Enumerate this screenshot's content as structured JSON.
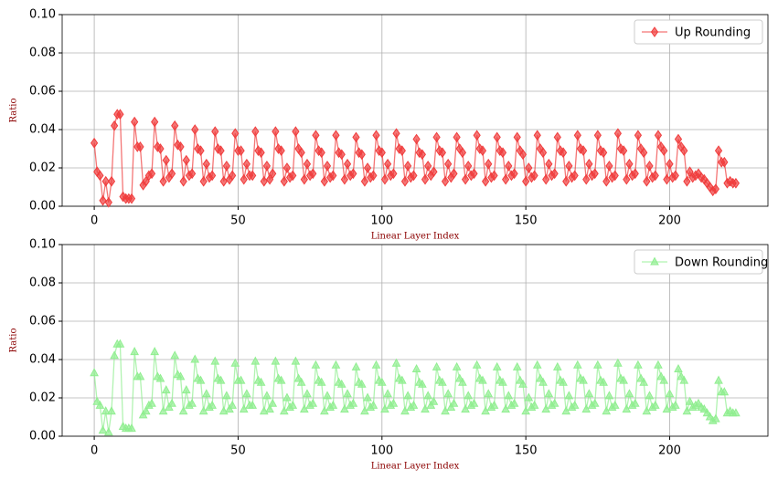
{
  "chart_data": [
    {
      "type": "line",
      "xlabel": "Linear Layer Index",
      "ylabel": "Ratio",
      "marker": "diamond",
      "legend": "upper right",
      "grid": true,
      "xlim": [
        -11.15,
        234.15
      ],
      "ylim": [
        0,
        0.1
      ],
      "xticks": [
        0,
        50,
        100,
        150,
        200
      ],
      "yticks": [
        {
          "value": 0,
          "label": "0.00"
        },
        {
          "value": 0.02,
          "label": "0.02"
        },
        {
          "value": 0.04,
          "label": "0.04"
        },
        {
          "value": 0.06,
          "label": "0.06"
        },
        {
          "value": 0.08,
          "label": "0.08"
        },
        {
          "value": 0.1,
          "label": "0.10"
        }
      ],
      "x": [
        0,
        1,
        2,
        3,
        4,
        5,
        6,
        7,
        8,
        9,
        10,
        11,
        12,
        13,
        14,
        15,
        16,
        17,
        18,
        19,
        20,
        21,
        22,
        23,
        24,
        25,
        26,
        27,
        28,
        29,
        30,
        31,
        32,
        33,
        34,
        35,
        36,
        37,
        38,
        39,
        40,
        41,
        42,
        43,
        44,
        45,
        46,
        47,
        48,
        49,
        50,
        51,
        52,
        53,
        54,
        55,
        56,
        57,
        58,
        59,
        60,
        61,
        62,
        63,
        64,
        65,
        66,
        67,
        68,
        69,
        70,
        71,
        72,
        73,
        74,
        75,
        76,
        77,
        78,
        79,
        80,
        81,
        82,
        83,
        84,
        85,
        86,
        87,
        88,
        89,
        90,
        91,
        92,
        93,
        94,
        95,
        96,
        97,
        98,
        99,
        100,
        101,
        102,
        103,
        104,
        105,
        106,
        107,
        108,
        109,
        110,
        111,
        112,
        113,
        114,
        115,
        116,
        117,
        118,
        119,
        120,
        121,
        122,
        123,
        124,
        125,
        126,
        127,
        128,
        129,
        130,
        131,
        132,
        133,
        134,
        135,
        136,
        137,
        138,
        139,
        140,
        141,
        142,
        143,
        144,
        145,
        146,
        147,
        148,
        149,
        150,
        151,
        152,
        153,
        154,
        155,
        156,
        157,
        158,
        159,
        160,
        161,
        162,
        163,
        164,
        165,
        166,
        167,
        168,
        169,
        170,
        171,
        172,
        173,
        174,
        175,
        176,
        177,
        178,
        179,
        180,
        181,
        182,
        183,
        184,
        185,
        186,
        187,
        188,
        189,
        190,
        191,
        192,
        193,
        194,
        195,
        196,
        197,
        198,
        199,
        200,
        201,
        202,
        203,
        204,
        205,
        206,
        207,
        208,
        209,
        210,
        211,
        212,
        213,
        214,
        215,
        216,
        217,
        218,
        219,
        220,
        221,
        222,
        223
      ],
      "series": [
        {
          "name": "Up Rounding",
          "color": "#f03c3c",
          "values": [
            0.033,
            0.018,
            0.016,
            0.003,
            0.013,
            0.002,
            0.013,
            0.042,
            0.048,
            0.048,
            0.005,
            0.004,
            0.004,
            0.004,
            0.044,
            0.031,
            0.031,
            0.011,
            0.013,
            0.016,
            0.017,
            0.044,
            0.031,
            0.03,
            0.013,
            0.024,
            0.015,
            0.017,
            0.042,
            0.032,
            0.031,
            0.013,
            0.024,
            0.016,
            0.017,
            0.04,
            0.03,
            0.029,
            0.013,
            0.022,
            0.015,
            0.016,
            0.039,
            0.03,
            0.029,
            0.013,
            0.021,
            0.014,
            0.016,
            0.038,
            0.029,
            0.029,
            0.014,
            0.022,
            0.016,
            0.016,
            0.039,
            0.029,
            0.028,
            0.013,
            0.021,
            0.014,
            0.017,
            0.039,
            0.03,
            0.029,
            0.013,
            0.02,
            0.015,
            0.016,
            0.039,
            0.03,
            0.028,
            0.014,
            0.022,
            0.016,
            0.017,
            0.037,
            0.029,
            0.028,
            0.013,
            0.021,
            0.015,
            0.016,
            0.037,
            0.028,
            0.027,
            0.014,
            0.022,
            0.016,
            0.017,
            0.036,
            0.028,
            0.027,
            0.013,
            0.02,
            0.015,
            0.016,
            0.037,
            0.029,
            0.028,
            0.014,
            0.022,
            0.016,
            0.017,
            0.038,
            0.03,
            0.029,
            0.013,
            0.021,
            0.015,
            0.016,
            0.035,
            0.028,
            0.027,
            0.014,
            0.021,
            0.016,
            0.018,
            0.036,
            0.029,
            0.028,
            0.013,
            0.022,
            0.015,
            0.017,
            0.036,
            0.03,
            0.028,
            0.014,
            0.021,
            0.016,
            0.017,
            0.037,
            0.03,
            0.029,
            0.013,
            0.022,
            0.015,
            0.016,
            0.036,
            0.029,
            0.028,
            0.014,
            0.021,
            0.016,
            0.017,
            0.036,
            0.029,
            0.027,
            0.013,
            0.02,
            0.015,
            0.016,
            0.037,
            0.03,
            0.028,
            0.014,
            0.022,
            0.016,
            0.017,
            0.036,
            0.029,
            0.028,
            0.013,
            0.021,
            0.015,
            0.016,
            0.037,
            0.03,
            0.029,
            0.014,
            0.022,
            0.016,
            0.017,
            0.037,
            0.029,
            0.028,
            0.013,
            0.021,
            0.015,
            0.016,
            0.038,
            0.03,
            0.029,
            0.014,
            0.022,
            0.016,
            0.017,
            0.037,
            0.03,
            0.028,
            0.013,
            0.021,
            0.015,
            0.016,
            0.037,
            0.031,
            0.029,
            0.014,
            0.022,
            0.015,
            0.016,
            0.035,
            0.031,
            0.029,
            0.013,
            0.018,
            0.015,
            0.016,
            0.017,
            0.015,
            0.014,
            0.012,
            0.01,
            0.008,
            0.009,
            0.029,
            0.023,
            0.023,
            0.012,
            0.013,
            0.012,
            0.012
          ]
        }
      ]
    },
    {
      "type": "line",
      "xlabel": "Linear Layer Index",
      "ylabel": "Ratio",
      "marker": "triangle",
      "legend": "upper right",
      "grid": true,
      "xlim": [
        -11.15,
        234.15
      ],
      "ylim": [
        0,
        0.1
      ],
      "xticks": [
        0,
        50,
        100,
        150,
        200
      ],
      "yticks": [
        {
          "value": 0,
          "label": "0.00"
        },
        {
          "value": 0.02,
          "label": "0.02"
        },
        {
          "value": 0.04,
          "label": "0.04"
        },
        {
          "value": 0.06,
          "label": "0.06"
        },
        {
          "value": 0.08,
          "label": "0.08"
        },
        {
          "value": 0.1,
          "label": "0.10"
        }
      ],
      "x": [
        0,
        1,
        2,
        3,
        4,
        5,
        6,
        7,
        8,
        9,
        10,
        11,
        12,
        13,
        14,
        15,
        16,
        17,
        18,
        19,
        20,
        21,
        22,
        23,
        24,
        25,
        26,
        27,
        28,
        29,
        30,
        31,
        32,
        33,
        34,
        35,
        36,
        37,
        38,
        39,
        40,
        41,
        42,
        43,
        44,
        45,
        46,
        47,
        48,
        49,
        50,
        51,
        52,
        53,
        54,
        55,
        56,
        57,
        58,
        59,
        60,
        61,
        62,
        63,
        64,
        65,
        66,
        67,
        68,
        69,
        70,
        71,
        72,
        73,
        74,
        75,
        76,
        77,
        78,
        79,
        80,
        81,
        82,
        83,
        84,
        85,
        86,
        87,
        88,
        89,
        90,
        91,
        92,
        93,
        94,
        95,
        96,
        97,
        98,
        99,
        100,
        101,
        102,
        103,
        104,
        105,
        106,
        107,
        108,
        109,
        110,
        111,
        112,
        113,
        114,
        115,
        116,
        117,
        118,
        119,
        120,
        121,
        122,
        123,
        124,
        125,
        126,
        127,
        128,
        129,
        130,
        131,
        132,
        133,
        134,
        135,
        136,
        137,
        138,
        139,
        140,
        141,
        142,
        143,
        144,
        145,
        146,
        147,
        148,
        149,
        150,
        151,
        152,
        153,
        154,
        155,
        156,
        157,
        158,
        159,
        160,
        161,
        162,
        163,
        164,
        165,
        166,
        167,
        168,
        169,
        170,
        171,
        172,
        173,
        174,
        175,
        176,
        177,
        178,
        179,
        180,
        181,
        182,
        183,
        184,
        185,
        186,
        187,
        188,
        189,
        190,
        191,
        192,
        193,
        194,
        195,
        196,
        197,
        198,
        199,
        200,
        201,
        202,
        203,
        204,
        205,
        206,
        207,
        208,
        209,
        210,
        211,
        212,
        213,
        214,
        215,
        216,
        217,
        218,
        219,
        220,
        221,
        222,
        223
      ],
      "series": [
        {
          "name": "Down Rounding",
          "color": "#90ee90",
          "values": [
            0.033,
            0.018,
            0.016,
            0.003,
            0.013,
            0.002,
            0.013,
            0.042,
            0.048,
            0.048,
            0.005,
            0.004,
            0.004,
            0.004,
            0.044,
            0.031,
            0.031,
            0.011,
            0.013,
            0.016,
            0.017,
            0.044,
            0.031,
            0.03,
            0.013,
            0.024,
            0.015,
            0.017,
            0.042,
            0.032,
            0.031,
            0.013,
            0.024,
            0.016,
            0.017,
            0.04,
            0.03,
            0.029,
            0.013,
            0.022,
            0.015,
            0.016,
            0.039,
            0.03,
            0.029,
            0.013,
            0.021,
            0.014,
            0.016,
            0.038,
            0.029,
            0.029,
            0.014,
            0.022,
            0.016,
            0.016,
            0.039,
            0.029,
            0.028,
            0.013,
            0.021,
            0.014,
            0.017,
            0.039,
            0.03,
            0.029,
            0.013,
            0.02,
            0.015,
            0.016,
            0.039,
            0.03,
            0.028,
            0.014,
            0.022,
            0.016,
            0.017,
            0.037,
            0.029,
            0.028,
            0.013,
            0.021,
            0.015,
            0.016,
            0.037,
            0.028,
            0.027,
            0.014,
            0.022,
            0.016,
            0.017,
            0.036,
            0.028,
            0.027,
            0.013,
            0.02,
            0.015,
            0.016,
            0.037,
            0.029,
            0.028,
            0.014,
            0.022,
            0.016,
            0.017,
            0.038,
            0.03,
            0.029,
            0.013,
            0.021,
            0.015,
            0.016,
            0.035,
            0.028,
            0.027,
            0.014,
            0.021,
            0.016,
            0.018,
            0.036,
            0.029,
            0.028,
            0.013,
            0.022,
            0.015,
            0.017,
            0.036,
            0.03,
            0.028,
            0.014,
            0.021,
            0.016,
            0.017,
            0.037,
            0.03,
            0.029,
            0.013,
            0.022,
            0.015,
            0.016,
            0.036,
            0.029,
            0.028,
            0.014,
            0.021,
            0.016,
            0.017,
            0.036,
            0.029,
            0.027,
            0.013,
            0.02,
            0.015,
            0.016,
            0.037,
            0.03,
            0.028,
            0.014,
            0.022,
            0.016,
            0.017,
            0.036,
            0.029,
            0.028,
            0.013,
            0.021,
            0.015,
            0.016,
            0.037,
            0.03,
            0.029,
            0.014,
            0.022,
            0.016,
            0.017,
            0.037,
            0.029,
            0.028,
            0.013,
            0.021,
            0.015,
            0.016,
            0.038,
            0.03,
            0.029,
            0.014,
            0.022,
            0.016,
            0.017,
            0.037,
            0.03,
            0.028,
            0.013,
            0.021,
            0.015,
            0.016,
            0.037,
            0.031,
            0.029,
            0.014,
            0.022,
            0.015,
            0.016,
            0.035,
            0.031,
            0.029,
            0.013,
            0.018,
            0.015,
            0.016,
            0.017,
            0.015,
            0.014,
            0.012,
            0.01,
            0.008,
            0.009,
            0.029,
            0.023,
            0.023,
            0.012,
            0.013,
            0.012,
            0.012
          ]
        }
      ]
    }
  ]
}
